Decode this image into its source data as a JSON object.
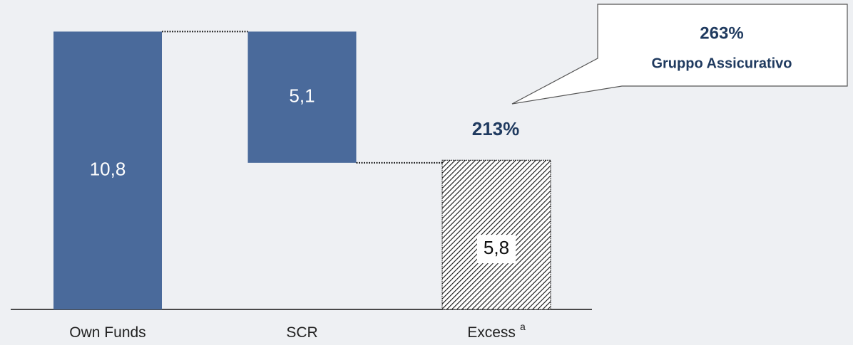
{
  "chart_data": {
    "type": "waterfall",
    "categories": [
      "Own Funds",
      "SCR",
      "Excess"
    ],
    "category_superscripts": [
      null,
      null,
      "a"
    ],
    "values": [
      10.8,
      5.1,
      5.8
    ],
    "value_labels": [
      "10,8",
      "5,1",
      "5,8"
    ],
    "measures": [
      "absolute",
      "decrease",
      "total"
    ],
    "color": "#4a6a9b",
    "ylim": [
      0,
      12
    ],
    "annotations": {
      "ratio": "213%",
      "callout_value": "263%",
      "callout_text": "Gruppo Assicurativo"
    }
  }
}
